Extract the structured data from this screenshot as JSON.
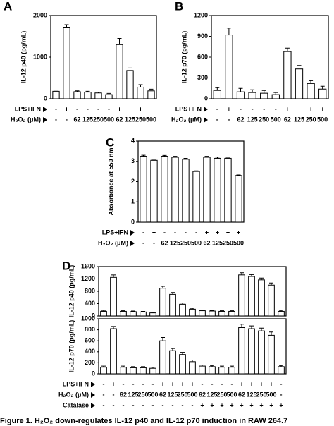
{
  "figure": {
    "caption": "Figure 1. H₂O₂ down-regulates IL-12 p40 and IL-12 p70 induction in RAW 264.7"
  },
  "chart_data": [
    {
      "type": "bar",
      "panel": "A",
      "y_label": "IL-12 p40 (pg/mL)",
      "ylim": [
        0,
        2000
      ],
      "yticks": [
        0,
        1000,
        2000
      ],
      "series": [
        {
          "color": "#ffffff",
          "values": [
            180,
            1720,
            170,
            160,
            140,
            100,
            1300,
            680,
            280,
            190
          ],
          "errors": [
            30,
            60,
            20,
            20,
            20,
            30,
            150,
            60,
            60,
            40
          ]
        }
      ],
      "conditions": [
        {
          "label": "LPS+IFN",
          "values": [
            "-",
            "+",
            "-",
            "-",
            "-",
            "-",
            "+",
            "+",
            "+",
            "+"
          ]
        },
        {
          "label": "H₂O₂ (μM)",
          "values": [
            "-",
            "-",
            "62",
            "125",
            "250",
            "500",
            "62",
            "125",
            "250",
            "500"
          ]
        }
      ]
    },
    {
      "type": "bar",
      "panel": "B",
      "y_label": "IL-12 p70 (pg/mL)",
      "ylim": [
        0,
        1200
      ],
      "yticks": [
        0,
        300,
        600,
        900,
        1200
      ],
      "series": [
        {
          "color": "#ffffff",
          "values": [
            120,
            920,
            100,
            90,
            80,
            60,
            680,
            430,
            220,
            140
          ],
          "errors": [
            40,
            100,
            50,
            40,
            40,
            30,
            50,
            50,
            40,
            40
          ]
        }
      ],
      "conditions": [
        {
          "label": "LPS+IFN",
          "values": [
            "-",
            "+",
            "-",
            "-",
            "-",
            "-",
            "+",
            "+",
            "+",
            "+"
          ]
        },
        {
          "label": "H₂O₂ (μM)",
          "values": [
            "-",
            "-",
            "62",
            "125",
            "250",
            "500",
            "62",
            "125",
            "250",
            "500"
          ]
        }
      ]
    },
    {
      "type": "bar",
      "panel": "C",
      "y_label": "Absorbance at 550 nm",
      "ylim": [
        0,
        4
      ],
      "yticks": [
        0,
        1,
        2,
        3,
        4
      ],
      "series": [
        {
          "color": "#ffffff",
          "values": [
            3.25,
            3.05,
            3.25,
            3.2,
            3.1,
            2.5,
            3.2,
            3.15,
            3.15,
            2.3
          ],
          "errors": [
            0.05,
            0.05,
            0.04,
            0.05,
            0.05,
            0.03,
            0.05,
            0.06,
            0.05,
            0.03
          ]
        }
      ],
      "conditions": [
        {
          "label": "LPS+IFN",
          "values": [
            "-",
            "+",
            "-",
            "-",
            "-",
            "-",
            "+",
            "+",
            "+",
            "+"
          ]
        },
        {
          "label": "H₂O₂ (μM)",
          "values": [
            "-",
            "-",
            "62",
            "125",
            "250",
            "500",
            "62",
            "125",
            "250",
            "500"
          ]
        }
      ]
    },
    {
      "type": "bar",
      "panel": "D",
      "y_label": "IL-12 p40 (pg/mL)",
      "ylim": [
        0,
        1600
      ],
      "yticks": [
        0,
        400,
        800,
        1200,
        1600
      ],
      "series": [
        {
          "color": "#ffffff",
          "values": [
            150,
            1250,
            150,
            140,
            130,
            100,
            900,
            700,
            380,
            220,
            170,
            160,
            150,
            150,
            1330,
            1280,
            1170,
            1000,
            150
          ],
          "errors": [
            30,
            80,
            20,
            20,
            20,
            20,
            60,
            60,
            40,
            30,
            20,
            20,
            20,
            20,
            70,
            60,
            60,
            70,
            30
          ]
        }
      ]
    },
    {
      "type": "bar",
      "y_label": "IL-12 p70 (pg/mL)",
      "ylim": [
        0,
        1000
      ],
      "yticks": [
        0,
        200,
        400,
        600,
        800,
        1000
      ],
      "series": [
        {
          "color": "#ffffff",
          "values": [
            120,
            820,
            120,
            110,
            110,
            100,
            600,
            420,
            350,
            220,
            140,
            130,
            120,
            120,
            840,
            820,
            780,
            700,
            130
          ],
          "errors": [
            20,
            40,
            20,
            20,
            20,
            20,
            60,
            40,
            40,
            30,
            20,
            20,
            20,
            20,
            60,
            50,
            50,
            60,
            20
          ]
        }
      ],
      "conditions": [
        {
          "label": "LPS+IFN",
          "values": [
            "-",
            "+",
            "-",
            "-",
            "-",
            "-",
            "+",
            "+",
            "+",
            "+",
            "-",
            "-",
            "-",
            "-",
            "+",
            "+",
            "+",
            "+",
            "-"
          ]
        },
        {
          "label": "H₂O₂ (μM)",
          "values": [
            "-",
            "-",
            "62",
            "125",
            "250",
            "500",
            "62",
            "125",
            "250",
            "500",
            "62",
            "125",
            "250",
            "500",
            "62",
            "125",
            "250",
            "500",
            "-"
          ]
        },
        {
          "label": "Catalase",
          "values": [
            "-",
            "-",
            "-",
            "-",
            "-",
            "-",
            "-",
            "-",
            "-",
            "-",
            "+",
            "+",
            "+",
            "+",
            "+",
            "+",
            "+",
            "+",
            "+"
          ]
        }
      ]
    }
  ]
}
